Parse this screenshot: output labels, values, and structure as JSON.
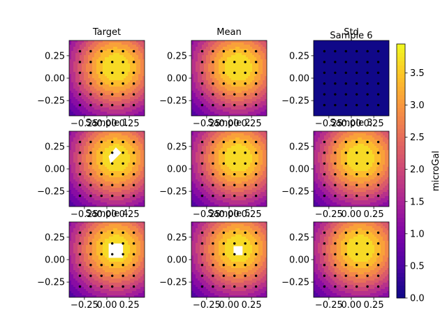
{
  "chart_data": {
    "type": "heatmap",
    "description_note": "",
    "colorbar": {
      "label": "microGal",
      "range": [
        0.0,
        3.95
      ],
      "ticks": [
        0.0,
        0.5,
        1.0,
        1.5,
        2.0,
        2.5,
        3.0,
        3.5
      ],
      "tick_labels": [
        "0.0",
        "0.5",
        "1.0",
        "1.5",
        "2.0",
        "2.5",
        "3.0",
        "3.5"
      ],
      "colormap": "plasma"
    },
    "axes_common": {
      "xlim": [
        -0.42,
        0.42
      ],
      "ylim": [
        -0.42,
        0.42
      ],
      "xticks": [
        -0.25,
        0.0,
        0.25
      ],
      "xtick_labels": [
        "−0.25",
        "0.00",
        "0.25"
      ],
      "yticks": [
        -0.25,
        0.0,
        0.25
      ],
      "ytick_labels": [
        "−0.25",
        "0.00",
        "0.25"
      ]
    },
    "field_model": {
      "peak_x": 0.1,
      "peak_y": 0.12,
      "peak_value": 3.95,
      "decay_radius": 0.5,
      "levels": 14
    },
    "station_points": {
      "x": [
        -0.3,
        -0.18,
        -0.06,
        0.06,
        0.18,
        0.3
      ],
      "y": [
        -0.3,
        -0.18,
        -0.06,
        0.06,
        0.18,
        0.3
      ]
    },
    "panels": [
      {
        "title": "Target",
        "mode": "field",
        "mask": null
      },
      {
        "title": "Mean",
        "mode": "field",
        "mask": null
      },
      {
        "title": "Std",
        "mode": "std",
        "mask": null,
        "overlay_title": "Sample 6"
      },
      {
        "title": "Sample 1",
        "mode": "field",
        "mask": {
          "type": "polygon",
          "points": [
            [
              0.04,
              0.06
            ],
            [
              0.16,
              0.18
            ],
            [
              0.14,
              0.2
            ],
            [
              0.1,
              0.24
            ],
            [
              0.02,
              0.14
            ]
          ]
        }
      },
      {
        "title": "Sample 2",
        "mode": "field",
        "mask": null
      },
      {
        "title": "Sample 3",
        "mode": "field",
        "mask": null
      },
      {
        "title": "Sample 4",
        "mode": "field",
        "mask": {
          "type": "rect",
          "x0": 0.02,
          "x1": 0.18,
          "y0": 0.02,
          "y1": 0.18
        }
      },
      {
        "title": "Sample 5",
        "mode": "field",
        "mask": {
          "type": "rect",
          "x0": 0.05,
          "x1": 0.15,
          "y0": 0.05,
          "y1": 0.15
        }
      },
      {
        "title": "",
        "mode": "field",
        "mask": null
      }
    ]
  }
}
